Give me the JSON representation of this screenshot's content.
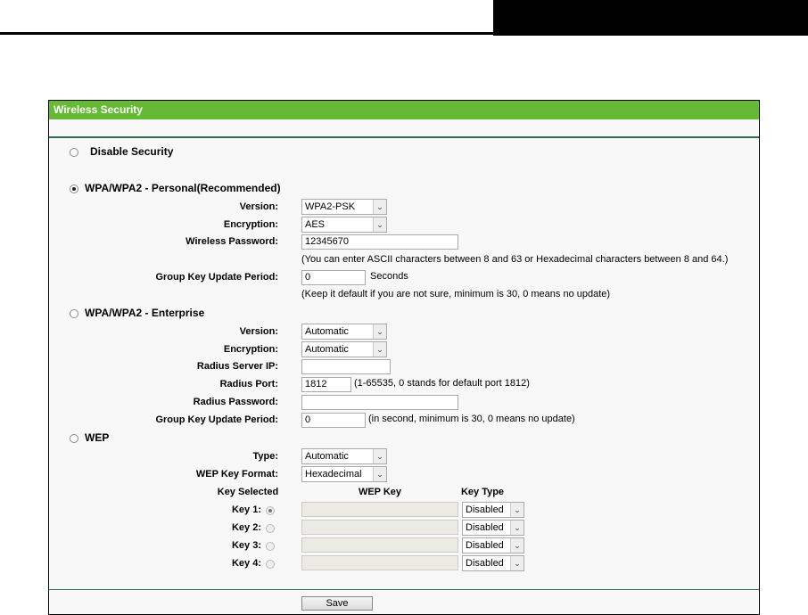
{
  "title": "Wireless Security",
  "modes": {
    "disable": {
      "label": "Disable Security",
      "selected": false
    },
    "personal": {
      "label": "WPA/WPA2 - Personal(Recommended)",
      "selected": true,
      "version_label": "Version:",
      "version": "WPA2-PSK",
      "encryption_label": "Encryption:",
      "encryption": "AES",
      "password_label": "Wireless Password:",
      "password": "12345670",
      "password_note": "(You can enter ASCII characters between 8 and 63 or Hexadecimal characters between 8 and 64.)",
      "gkup_label": "Group Key Update Period:",
      "gkup": "0",
      "gkup_unit": "Seconds",
      "gkup_note": "(Keep it default if you are not sure, minimum is 30, 0 means no update)"
    },
    "enterprise": {
      "label": "WPA/WPA2 - Enterprise",
      "selected": false,
      "version_label": "Version:",
      "version": "Automatic",
      "encryption_label": "Encryption:",
      "encryption": "Automatic",
      "radius_ip_label": "Radius Server IP:",
      "radius_ip": "",
      "radius_port_label": "Radius Port:",
      "radius_port": "1812",
      "radius_port_note": "(1-65535, 0 stands for default port 1812)",
      "radius_pw_label": "Radius Password:",
      "radius_pw": "",
      "gkup_label": "Group Key Update Period:",
      "gkup": "0",
      "gkup_note": "(in second, minimum is 30, 0 means no update)"
    },
    "wep": {
      "label": "WEP",
      "selected": false,
      "type_label": "Type:",
      "type": "Automatic",
      "format_label": "WEP Key Format:",
      "format": "Hexadecimal",
      "col_selected": "Key Selected",
      "col_key": "WEP Key",
      "col_type": "Key Type",
      "keys": [
        {
          "label": "Key 1:",
          "value": "",
          "type": "Disabled",
          "selected": true
        },
        {
          "label": "Key 2:",
          "value": "",
          "type": "Disabled",
          "selected": false
        },
        {
          "label": "Key 3:",
          "value": "",
          "type": "Disabled",
          "selected": false
        },
        {
          "label": "Key 4:",
          "value": "",
          "type": "Disabled",
          "selected": false
        }
      ]
    }
  },
  "save_label": "Save",
  "colors": {
    "header": "#66b934",
    "divider": "#2e6b4a"
  }
}
